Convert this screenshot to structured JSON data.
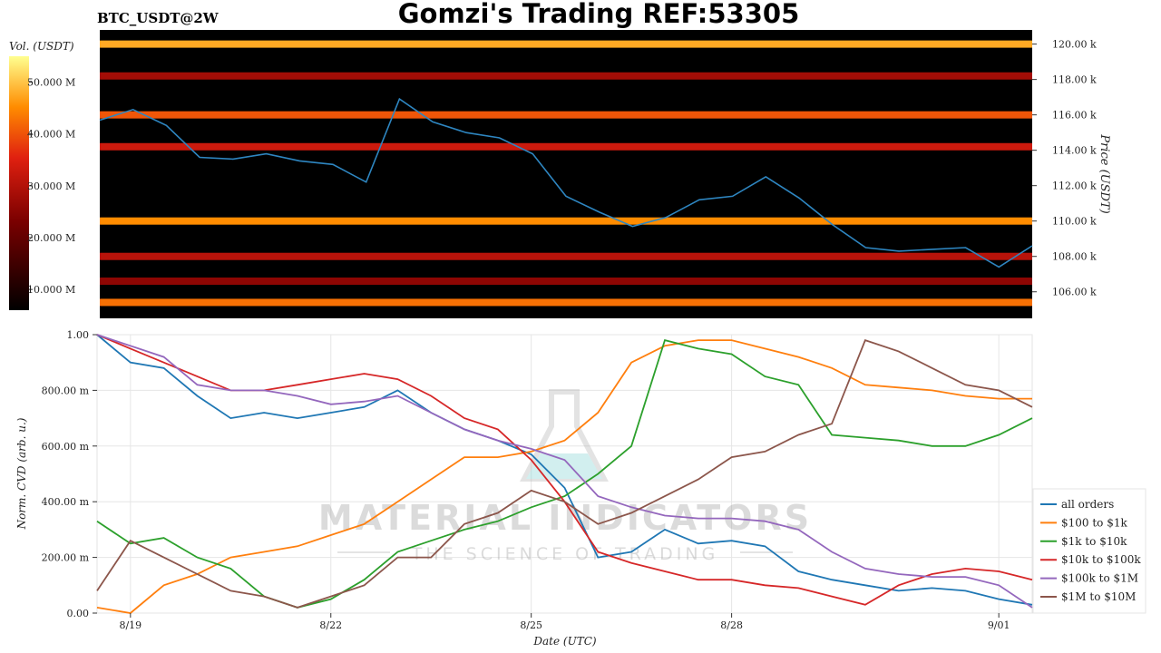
{
  "header": {
    "title": "Gomzi's Trading REF:53305",
    "symbol": "BTC_USDT@2W"
  },
  "heatmap": {
    "colorbar_label": "Vol. (USDT)",
    "colorbar_ticks": [
      "10.000 M",
      "20.000 M",
      "30.000 M",
      "40.000 M",
      "50.000 M"
    ],
    "y_label": "Price (USDT)",
    "y_ticks": [
      "106.00 k",
      "108.00 k",
      "110.00 k",
      "112.00 k",
      "114.00 k",
      "116.00 k",
      "118.00 k",
      "120.00 k"
    ]
  },
  "cvd": {
    "y_label": "Norm. CVD (arb. u.)",
    "x_label": "Date (UTC)",
    "y_ticks": [
      "0.00",
      "200.00 m",
      "400.00 m",
      "600.00 m",
      "800.00 m",
      "1.00"
    ],
    "x_ticks": [
      "8/19",
      "8/22",
      "8/25",
      "8/28",
      "9/01"
    ]
  },
  "watermark": {
    "name": "MATERIAL INDICATORS",
    "tagline": "THE SCIENCE OF TRADING"
  },
  "colors": {
    "price_line": "#2e86c1",
    "heat_low": "#000000",
    "heat_mid": "#d42a10",
    "heat_high": "#ffff70"
  },
  "chart_data": [
    {
      "type": "heatmap",
      "title": "",
      "ylabel": "Price (USDT)",
      "ylim": [
        104.5,
        120.8
      ],
      "y_unit": "k USDT",
      "price_series": {
        "x": [
          "8/18 12:00",
          "8/19 00:00",
          "8/19 12:00",
          "8/20 00:00",
          "8/20 12:00",
          "8/21 00:00",
          "8/21 12:00",
          "8/22 00:00",
          "8/22 12:00",
          "8/23 00:00",
          "8/23 12:00",
          "8/24 00:00",
          "8/24 12:00",
          "8/25 00:00",
          "8/25 12:00",
          "8/26 00:00",
          "8/26 12:00",
          "8/27 00:00",
          "8/27 12:00",
          "8/28 00:00",
          "8/28 12:00",
          "8/29 00:00",
          "8/29 12:00",
          "8/30 00:00",
          "8/30 12:00",
          "8/31 00:00",
          "8/31 12:00",
          "9/01 00:00",
          "9/01 12:00"
        ],
        "values": [
          115.7,
          116.3,
          115.4,
          113.6,
          113.5,
          113.8,
          113.4,
          113.2,
          112.2,
          116.9,
          115.6,
          115.0,
          114.7,
          113.8,
          111.4,
          110.5,
          109.7,
          110.2,
          111.2,
          111.4,
          112.5,
          111.3,
          109.8,
          108.5,
          108.3,
          108.4,
          108.5,
          107.4,
          108.6
        ]
      },
      "liquidity_bands": [
        {
          "price": 120.0,
          "level": 0.85
        },
        {
          "price": 118.2,
          "level": 0.45
        },
        {
          "price": 116.0,
          "level": 0.7
        },
        {
          "price": 114.2,
          "level": 0.55
        },
        {
          "price": 110.0,
          "level": 0.8
        },
        {
          "price": 108.0,
          "level": 0.5
        },
        {
          "price": 106.6,
          "level": 0.4
        },
        {
          "price": 105.4,
          "level": 0.75
        }
      ],
      "colorbar": {
        "label": "Vol. (USDT)",
        "range": [
          6,
          55
        ],
        "unit": "M USDT"
      }
    },
    {
      "type": "line",
      "title": "",
      "xlabel": "Date (UTC)",
      "ylabel": "Norm. CVD (arb. u.)",
      "ylim": [
        0,
        1
      ],
      "x": [
        "8/18 12:00",
        "8/19 00:00",
        "8/19 12:00",
        "8/20 00:00",
        "8/20 12:00",
        "8/21 00:00",
        "8/21 12:00",
        "8/22 00:00",
        "8/22 12:00",
        "8/23 00:00",
        "8/23 12:00",
        "8/24 00:00",
        "8/24 12:00",
        "8/25 00:00",
        "8/25 12:00",
        "8/26 00:00",
        "8/26 12:00",
        "8/27 00:00",
        "8/27 12:00",
        "8/28 00:00",
        "8/28 12:00",
        "8/29 00:00",
        "8/29 12:00",
        "8/30 00:00",
        "8/30 12:00",
        "8/31 00:00",
        "8/31 12:00",
        "9/01 00:00",
        "9/01 12:00"
      ],
      "series": [
        {
          "name": "all orders",
          "color": "#1f77b4",
          "values": [
            1.0,
            0.9,
            0.88,
            0.78,
            0.7,
            0.72,
            0.7,
            0.72,
            0.74,
            0.8,
            0.72,
            0.66,
            0.62,
            0.57,
            0.45,
            0.2,
            0.22,
            0.3,
            0.25,
            0.26,
            0.24,
            0.15,
            0.12,
            0.1,
            0.08,
            0.09,
            0.08,
            0.05,
            0.03
          ]
        },
        {
          "name": "$100 to $1k",
          "color": "#ff7f0e",
          "values": [
            0.02,
            0.0,
            0.1,
            0.14,
            0.2,
            0.22,
            0.24,
            0.28,
            0.32,
            0.4,
            0.48,
            0.56,
            0.56,
            0.58,
            0.62,
            0.72,
            0.9,
            0.96,
            0.98,
            0.98,
            0.95,
            0.92,
            0.88,
            0.82,
            0.81,
            0.8,
            0.78,
            0.77,
            0.77
          ]
        },
        {
          "name": "$1k to $10k",
          "color": "#2ca02c",
          "values": [
            0.33,
            0.25,
            0.27,
            0.2,
            0.16,
            0.06,
            0.02,
            0.05,
            0.12,
            0.22,
            0.26,
            0.3,
            0.33,
            0.38,
            0.42,
            0.5,
            0.6,
            0.98,
            0.95,
            0.93,
            0.85,
            0.82,
            0.64,
            0.63,
            0.62,
            0.6,
            0.6,
            0.64,
            0.7
          ]
        },
        {
          "name": "$10k to $100k",
          "color": "#d62728",
          "values": [
            1.0,
            0.95,
            0.9,
            0.85,
            0.8,
            0.8,
            0.82,
            0.84,
            0.86,
            0.84,
            0.78,
            0.7,
            0.66,
            0.55,
            0.4,
            0.22,
            0.18,
            0.15,
            0.12,
            0.12,
            0.1,
            0.09,
            0.06,
            0.03,
            0.1,
            0.14,
            0.16,
            0.15,
            0.12
          ]
        },
        {
          "name": "$100k to $1M",
          "color": "#9467bd",
          "values": [
            1.0,
            0.96,
            0.92,
            0.82,
            0.8,
            0.8,
            0.78,
            0.75,
            0.76,
            0.78,
            0.72,
            0.66,
            0.62,
            0.59,
            0.55,
            0.42,
            0.38,
            0.35,
            0.34,
            0.34,
            0.33,
            0.3,
            0.22,
            0.16,
            0.14,
            0.13,
            0.13,
            0.1,
            0.02
          ]
        },
        {
          "name": "$1M to $10M",
          "color": "#8c564b",
          "values": [
            0.08,
            0.26,
            0.2,
            0.14,
            0.08,
            0.06,
            0.02,
            0.06,
            0.1,
            0.2,
            0.2,
            0.32,
            0.36,
            0.44,
            0.4,
            0.32,
            0.36,
            0.42,
            0.48,
            0.56,
            0.58,
            0.64,
            0.68,
            0.98,
            0.94,
            0.88,
            0.82,
            0.8,
            0.74
          ]
        }
      ]
    }
  ]
}
